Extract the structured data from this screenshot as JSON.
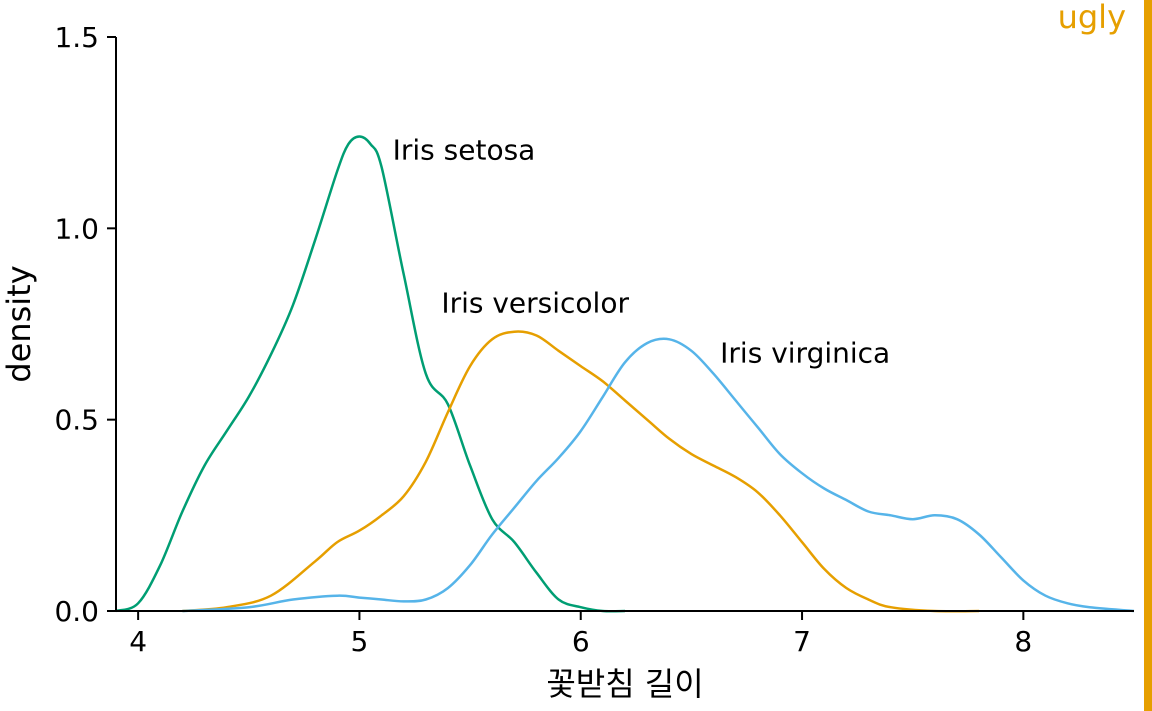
{
  "tag": {
    "label": "ugly",
    "color": "#E69F00"
  },
  "chart_data": {
    "type": "line",
    "xlabel": "꽃받침 길이",
    "ylabel": "density",
    "xlim": [
      3.9,
      8.5
    ],
    "ylim": [
      0,
      1.5
    ],
    "xticks": [
      "4",
      "5",
      "6",
      "7",
      "8"
    ],
    "yticks": [
      "0.0",
      "0.5",
      "1.0",
      "1.5"
    ],
    "grid": false,
    "legend": "direct labels",
    "series": [
      {
        "name": "Iris setosa",
        "color": "#009E73",
        "label_at": [
          5.15,
          1.18
        ],
        "x": [
          3.9,
          4.0,
          4.1,
          4.2,
          4.3,
          4.4,
          4.5,
          4.6,
          4.7,
          4.8,
          4.9,
          4.95,
          5.0,
          5.05,
          5.1,
          5.2,
          5.3,
          5.4,
          5.5,
          5.6,
          5.7,
          5.8,
          5.9,
          6.0,
          6.1,
          6.2
        ],
        "y": [
          0.0,
          0.02,
          0.12,
          0.26,
          0.38,
          0.47,
          0.56,
          0.67,
          0.8,
          0.97,
          1.15,
          1.22,
          1.24,
          1.22,
          1.16,
          0.88,
          0.62,
          0.54,
          0.38,
          0.24,
          0.18,
          0.1,
          0.03,
          0.01,
          0.0,
          0.0
        ]
      },
      {
        "name": "Iris versicolor",
        "color": "#E69F00",
        "label_at": [
          5.37,
          0.78
        ],
        "x": [
          4.2,
          4.4,
          4.6,
          4.8,
          4.9,
          5.0,
          5.1,
          5.2,
          5.3,
          5.4,
          5.5,
          5.6,
          5.7,
          5.8,
          5.9,
          6.0,
          6.1,
          6.2,
          6.3,
          6.4,
          6.5,
          6.6,
          6.7,
          6.8,
          6.9,
          7.0,
          7.1,
          7.2,
          7.3,
          7.4,
          7.6,
          7.8
        ],
        "y": [
          0.0,
          0.01,
          0.04,
          0.13,
          0.18,
          0.21,
          0.25,
          0.3,
          0.39,
          0.52,
          0.64,
          0.71,
          0.73,
          0.72,
          0.68,
          0.64,
          0.6,
          0.55,
          0.5,
          0.45,
          0.41,
          0.38,
          0.35,
          0.31,
          0.25,
          0.18,
          0.11,
          0.06,
          0.03,
          0.01,
          0.0,
          0.0
        ]
      },
      {
        "name": "Iris virginica",
        "color": "#56B4E9",
        "label_at": [
          6.63,
          0.65
        ],
        "x": [
          4.2,
          4.5,
          4.7,
          4.9,
          5.0,
          5.1,
          5.2,
          5.3,
          5.4,
          5.5,
          5.6,
          5.7,
          5.8,
          5.9,
          6.0,
          6.1,
          6.2,
          6.3,
          6.4,
          6.5,
          6.6,
          6.7,
          6.8,
          6.9,
          7.0,
          7.1,
          7.2,
          7.3,
          7.4,
          7.5,
          7.6,
          7.7,
          7.8,
          7.9,
          8.0,
          8.1,
          8.2,
          8.3,
          8.5
        ],
        "y": [
          0.0,
          0.01,
          0.03,
          0.04,
          0.035,
          0.03,
          0.025,
          0.03,
          0.06,
          0.12,
          0.2,
          0.27,
          0.34,
          0.4,
          0.47,
          0.56,
          0.65,
          0.7,
          0.71,
          0.68,
          0.62,
          0.55,
          0.48,
          0.41,
          0.36,
          0.32,
          0.29,
          0.26,
          0.25,
          0.24,
          0.25,
          0.24,
          0.2,
          0.14,
          0.08,
          0.04,
          0.02,
          0.01,
          0.0
        ]
      }
    ]
  }
}
